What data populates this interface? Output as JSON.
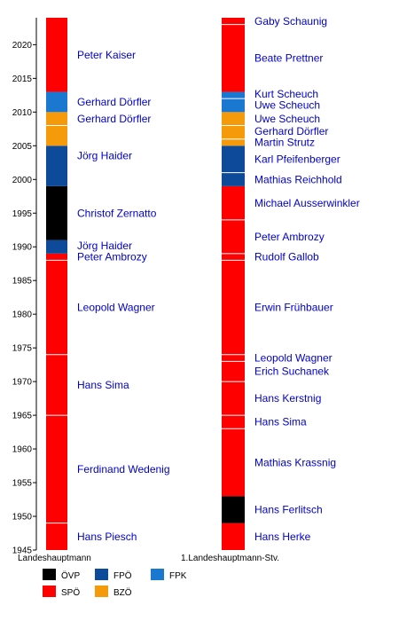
{
  "chart_data": {
    "type": "bar",
    "subtype": "timeline",
    "title": "",
    "ylim": [
      1945,
      2024
    ],
    "y_ticks": [
      1945,
      1950,
      1955,
      1960,
      1965,
      1970,
      1975,
      1980,
      1985,
      1990,
      1995,
      2000,
      2005,
      2010,
      2015,
      2020
    ],
    "grid": false,
    "parties": [
      {
        "key": "OVP",
        "label": "ÖVP",
        "color": "#000000"
      },
      {
        "key": "SPO",
        "label": "SPÖ",
        "color": "#ff0000"
      },
      {
        "key": "FPO",
        "label": "FPÖ",
        "color": "#0d4a99"
      },
      {
        "key": "BZO",
        "label": "BZÖ",
        "color": "#f59b0b"
      },
      {
        "key": "FPK",
        "label": "FPK",
        "color": "#1a78d1"
      }
    ],
    "columns": [
      {
        "label": "Landeshauptmann",
        "terms": [
          {
            "name": "Hans Piesch",
            "party": "SPO",
            "start": 1945,
            "end": 1949
          },
          {
            "name": "Ferdinand Wedenig",
            "party": "SPO",
            "start": 1949,
            "end": 1965
          },
          {
            "name": "Hans Sima",
            "party": "SPO",
            "start": 1965,
            "end": 1974
          },
          {
            "name": "Leopold Wagner",
            "party": "SPO",
            "start": 1974,
            "end": 1988
          },
          {
            "name": "Peter Ambrozy",
            "party": "SPO",
            "start": 1988,
            "end": 1989
          },
          {
            "name": "Jörg Haider",
            "party": "FPO",
            "start": 1989,
            "end": 1991
          },
          {
            "name": "Christof Zernatto",
            "party": "OVP",
            "start": 1991,
            "end": 1999
          },
          {
            "name": "Jörg Haider",
            "party": "FPO",
            "start": 1999,
            "end": 2005
          },
          {
            "name": "Jörg Haider",
            "party": "BZO",
            "start": 2005,
            "end": 2008
          },
          {
            "name": "Gerhard Dörfler",
            "party": "BZO",
            "start": 2008,
            "end": 2010
          },
          {
            "name": "Gerhard Dörfler",
            "party": "FPK",
            "start": 2010,
            "end": 2013
          },
          {
            "name": "Peter Kaiser",
            "party": "SPO",
            "start": 2013,
            "end": 2024
          }
        ]
      },
      {
        "label": "1.Landeshauptmann-Stv.",
        "terms": [
          {
            "name": "Hans Herke",
            "party": "SPO",
            "start": 1945,
            "end": 1949
          },
          {
            "name": "Hans Ferlitsch",
            "party": "OVP",
            "start": 1949,
            "end": 1953
          },
          {
            "name": "Mathias Krassnig",
            "party": "SPO",
            "start": 1953,
            "end": 1963
          },
          {
            "name": "Hans Sima",
            "party": "SPO",
            "start": 1963,
            "end": 1965
          },
          {
            "name": "Hans Kerstnig",
            "party": "SPO",
            "start": 1965,
            "end": 1970
          },
          {
            "name": "Erich Suchanek",
            "party": "SPO",
            "start": 1970,
            "end": 1973
          },
          {
            "name": "Leopold Wagner",
            "party": "SPO",
            "start": 1973,
            "end": 1974
          },
          {
            "name": "Erwin Frühbauer",
            "party": "SPO",
            "start": 1974,
            "end": 1988
          },
          {
            "name": "Rudolf Gallob",
            "party": "SPO",
            "start": 1988,
            "end": 1989
          },
          {
            "name": "Peter Ambrozy",
            "party": "SPO",
            "start": 1989,
            "end": 1994
          },
          {
            "name": "Michael Ausserwinkler",
            "party": "SPO",
            "start": 1994,
            "end": 1999
          },
          {
            "name": "Mathias Reichhold",
            "party": "FPO",
            "start": 1999,
            "end": 2001
          },
          {
            "name": "Karl Pfeifenberger",
            "party": "FPO",
            "start": 2001,
            "end": 2005
          },
          {
            "name": "Martin Strutz",
            "party": "BZO",
            "start": 2005,
            "end": 2006
          },
          {
            "name": "Gerhard Dörfler",
            "party": "BZO",
            "start": 2006,
            "end": 2008
          },
          {
            "name": "Uwe Scheuch",
            "party": "BZO",
            "start": 2008,
            "end": 2010
          },
          {
            "name": "Uwe Scheuch",
            "party": "FPK",
            "start": 2010,
            "end": 2012
          },
          {
            "name": "Kurt Scheuch",
            "party": "FPK",
            "start": 2012,
            "end": 2013
          },
          {
            "name": "Beate Prettner",
            "party": "SPO",
            "start": 2013,
            "end": 2023
          },
          {
            "name": "Gaby Schaunig",
            "party": "SPO",
            "start": 2023,
            "end": 2024
          }
        ]
      }
    ],
    "label_dividers": [
      {
        "column": 0,
        "name": "Gerhard Dörfler",
        "party": "BZO",
        "start": 2008,
        "end": 2010
      }
    ],
    "legend": {
      "placement": "bottom-left",
      "items": [
        "OVP",
        "FPO",
        "FPK",
        "SPO",
        "BZO"
      ]
    }
  }
}
